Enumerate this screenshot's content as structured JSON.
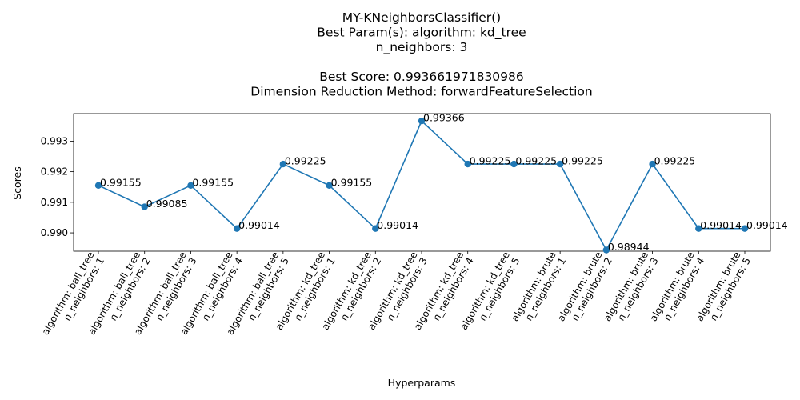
{
  "chart_data": {
    "type": "line",
    "title_lines": [
      "MY-KNeighborsClassifier()",
      "Best Param(s): algorithm: kd_tree",
      "n_neighbors: 3",
      "",
      "Best Score: 0.993661971830986",
      "Dimension Reduction Method: forwardFeatureSelection"
    ],
    "xlabel": "Hyperparams",
    "ylabel": "Scores",
    "categories": [
      [
        "algorithm: ball_tree",
        "n_neighbors: 1"
      ],
      [
        "algorithm: ball_tree",
        "n_neighbors: 2"
      ],
      [
        "algorithm: ball_tree",
        "n_neighbors: 3"
      ],
      [
        "algorithm: ball_tree",
        "n_neighbors: 4"
      ],
      [
        "algorithm: ball_tree",
        "n_neighbors: 5"
      ],
      [
        "algorithm: kd_tree",
        "n_neighbors: 1"
      ],
      [
        "algorithm: kd_tree",
        "n_neighbors: 2"
      ],
      [
        "algorithm: kd_tree",
        "n_neighbors: 3"
      ],
      [
        "algorithm: kd_tree",
        "n_neighbors: 4"
      ],
      [
        "algorithm: kd_tree",
        "n_neighbors: 5"
      ],
      [
        "algorithm: brute",
        "n_neighbors: 1"
      ],
      [
        "algorithm: brute",
        "n_neighbors: 2"
      ],
      [
        "algorithm: brute",
        "n_neighbors: 3"
      ],
      [
        "algorithm: brute",
        "n_neighbors: 4"
      ],
      [
        "algorithm: brute",
        "n_neighbors: 5"
      ]
    ],
    "values": [
      0.99155,
      0.99085,
      0.99155,
      0.99014,
      0.99225,
      0.99155,
      0.99014,
      0.99366,
      0.99225,
      0.99225,
      0.99225,
      0.98944,
      0.99225,
      0.99014,
      0.99014
    ],
    "data_labels": [
      "0.99155",
      "0.99085",
      "0.99155",
      "0.99014",
      "0.99225",
      "0.99155",
      "0.99014",
      "0.99366",
      "0.99225",
      "0.99225",
      "0.99225",
      "0.98944",
      "0.99225",
      "0.99014",
      "0.99014"
    ],
    "yticks": [
      0.99,
      0.991,
      0.992,
      0.993
    ],
    "ytick_labels": [
      "0.990",
      "0.991",
      "0.992",
      "0.993"
    ],
    "ylim": [
      0.9894,
      0.9939
    ],
    "grid": false,
    "line_color": "#1f77b4"
  }
}
